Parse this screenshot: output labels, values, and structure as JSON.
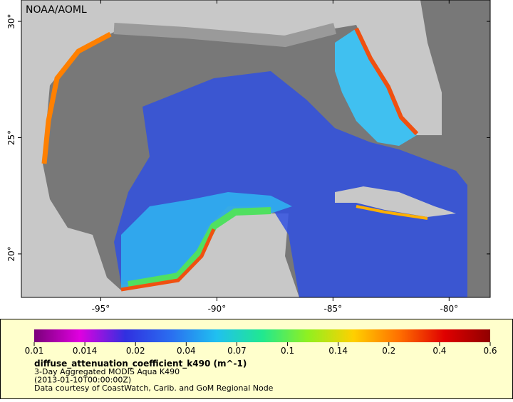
{
  "header": {
    "title": "NOAA/AOML"
  },
  "map": {
    "xlim": [
      -98.42,
      -78.23
    ],
    "ylim": [
      18.13,
      30.92
    ],
    "xticks": [
      {
        "value": -95,
        "label": "-95°"
      },
      {
        "value": -90,
        "label": "-90°"
      },
      {
        "value": -85,
        "label": "-85°"
      },
      {
        "value": -80,
        "label": "-80°"
      }
    ],
    "yticks": [
      {
        "value": 20,
        "label": "20°"
      },
      {
        "value": 25,
        "label": "25°"
      },
      {
        "value": 30,
        "label": "30°"
      }
    ]
  },
  "colorbar": {
    "ticks": [
      0.01,
      0.014,
      0.02,
      0.04,
      0.07,
      0.1,
      0.14,
      0.2,
      0.4,
      0.6
    ],
    "colors": [
      "#7a007a",
      "#e000e0",
      "#3030e0",
      "#2a6ef0",
      "#20c0f0",
      "#20e890",
      "#90f020",
      "#ffd000",
      "#ff7000",
      "#e00000",
      "#900000"
    ]
  },
  "legend": {
    "variable": "diffuse_attenuation_coefficient_k490 (m^-1)",
    "lines": [
      "3-Day Aggregated MODIS Aqua K490",
      "(2013-01-10T00:00:00Z)",
      "Data courtesy of CoastWatch, Carib. and GoM Regional Node"
    ]
  }
}
